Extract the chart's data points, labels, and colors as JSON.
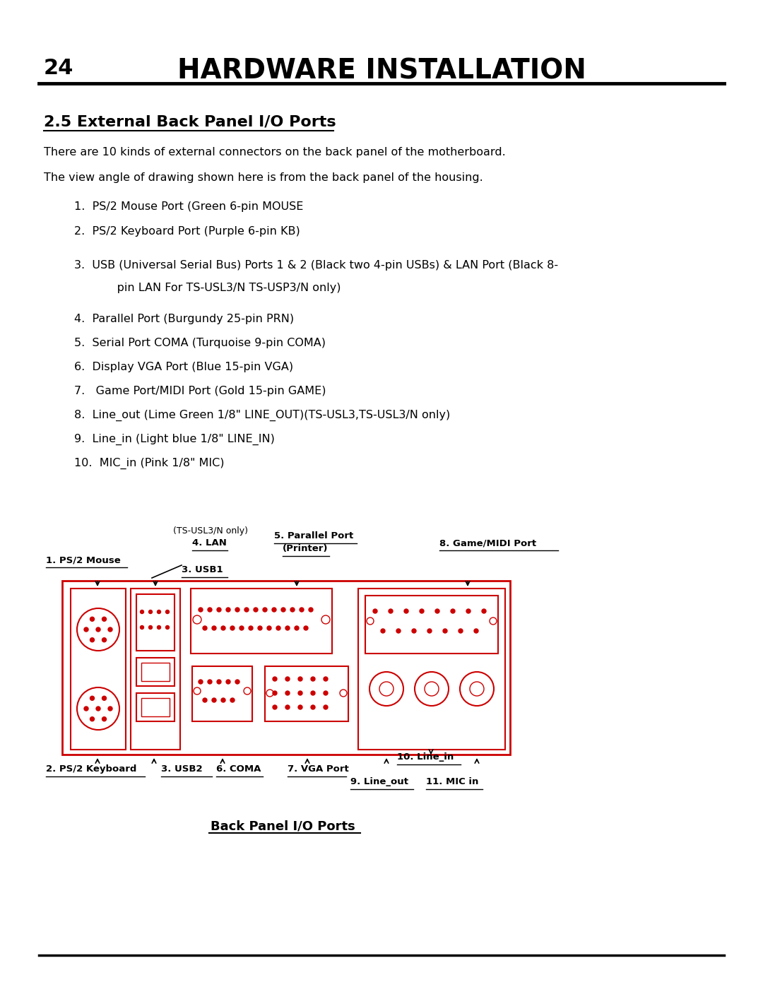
{
  "page_number": "24",
  "title": "HARDWARE INSTALLATION",
  "section": "2.5 External Back Panel I/O Ports",
  "para1": "There are 10 kinds of external connectors on the back panel of the motherboard.",
  "para2": "The view angle of drawing shown here is from the back panel of the housing.",
  "item1": "1.  PS/2 Mouse Port (Green 6-pin MOUSE",
  "item2": "2.  PS/2 Keyboard Port (Purple 6-pin KB)",
  "item3a": "3.  USB (Universal Serial Bus) Ports 1 & 2 (Black two 4-pin USBs) & LAN Port (Black 8-",
  "item3b": "     pin LAN For TS-USL3/N TS-USP3/N only)",
  "item4": "4.  Parallel Port (Burgundy 25-pin PRN)",
  "item5": "5.  Serial Port COMA (Turquoise 9-pin COMA)",
  "item6": "6.  Display VGA Port (Blue 15-pin VGA)",
  "item7": "7.   Game Port/MIDI Port (Gold 15-pin GAME)",
  "item8": "8.  Line_out (Lime Green 1/8\" LINE_OUT)(TS-USL3,TS-USL3/N only)",
  "item9": "9.  Line_in (Light blue 1/8\" LINE_IN)",
  "item10": "10.  MIC_in (Pink 1/8\" MIC)",
  "diagram_caption": "Back Panel I/O Ports",
  "bg_color": "#ffffff",
  "text_color": "#000000",
  "red_color": "#cc0000"
}
